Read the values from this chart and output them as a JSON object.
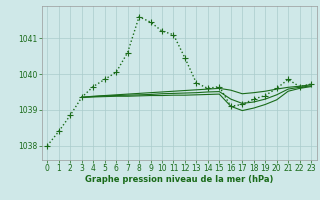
{
  "xlabel": "Graphe pression niveau de la mer (hPa)",
  "background_color": "#cfe8e8",
  "grid_color": "#aacccc",
  "line_color": "#1a6b1a",
  "ylim": [
    1037.6,
    1041.9
  ],
  "xlim": [
    -0.5,
    23.5
  ],
  "yticks": [
    1038,
    1039,
    1040,
    1041
  ],
  "xticks": [
    0,
    1,
    2,
    3,
    4,
    5,
    6,
    7,
    8,
    9,
    10,
    11,
    12,
    13,
    14,
    15,
    16,
    17,
    18,
    19,
    20,
    21,
    22,
    23
  ],
  "series": [
    {
      "x": [
        0,
        1,
        2,
        3,
        4,
        5,
        6,
        7,
        8,
        9,
        10,
        11,
        12,
        13,
        14,
        15,
        16,
        17,
        18,
        19,
        20,
        21,
        22,
        23
      ],
      "y": [
        1038.0,
        1038.4,
        1038.85,
        1039.35,
        1039.65,
        1039.85,
        1040.05,
        1040.6,
        1041.6,
        1041.45,
        1041.2,
        1041.1,
        1040.45,
        1039.75,
        1039.6,
        1039.65,
        1039.1,
        1039.15,
        1039.3,
        1039.4,
        1039.6,
        1039.85,
        1039.65,
        1039.72
      ],
      "style": "dotted",
      "marker": "+",
      "markersize": 4,
      "linewidth": 1.0
    },
    {
      "x": [
        3,
        4,
        5,
        6,
        7,
        8,
        9,
        10,
        11,
        12,
        13,
        14,
        15,
        16,
        17,
        18,
        19,
        20,
        21,
        22,
        23
      ],
      "y": [
        1039.35,
        1039.38,
        1039.4,
        1039.42,
        1039.44,
        1039.46,
        1039.48,
        1039.5,
        1039.52,
        1039.54,
        1039.56,
        1039.58,
        1039.6,
        1039.55,
        1039.45,
        1039.48,
        1039.52,
        1039.58,
        1039.63,
        1039.66,
        1039.7
      ],
      "style": "solid",
      "marker": null,
      "markersize": 0,
      "linewidth": 0.8
    },
    {
      "x": [
        3,
        4,
        5,
        6,
        7,
        8,
        9,
        10,
        11,
        12,
        13,
        14,
        15,
        16,
        17,
        18,
        19,
        20,
        21,
        22,
        23
      ],
      "y": [
        1039.35,
        1039.37,
        1039.39,
        1039.4,
        1039.41,
        1039.42,
        1039.43,
        1039.45,
        1039.46,
        1039.47,
        1039.48,
        1039.5,
        1039.51,
        1039.3,
        1039.18,
        1039.22,
        1039.3,
        1039.42,
        1039.58,
        1039.63,
        1039.67
      ],
      "style": "solid",
      "marker": null,
      "markersize": 0,
      "linewidth": 0.8
    },
    {
      "x": [
        3,
        4,
        5,
        6,
        7,
        8,
        9,
        10,
        11,
        12,
        13,
        14,
        15,
        16,
        17,
        18,
        19,
        20,
        21,
        22,
        23
      ],
      "y": [
        1039.35,
        1039.36,
        1039.37,
        1039.38,
        1039.38,
        1039.39,
        1039.4,
        1039.4,
        1039.41,
        1039.41,
        1039.42,
        1039.43,
        1039.44,
        1039.1,
        1038.98,
        1039.05,
        1039.15,
        1039.28,
        1039.52,
        1039.6,
        1039.65
      ],
      "style": "solid",
      "marker": null,
      "markersize": 0,
      "linewidth": 0.8
    }
  ]
}
